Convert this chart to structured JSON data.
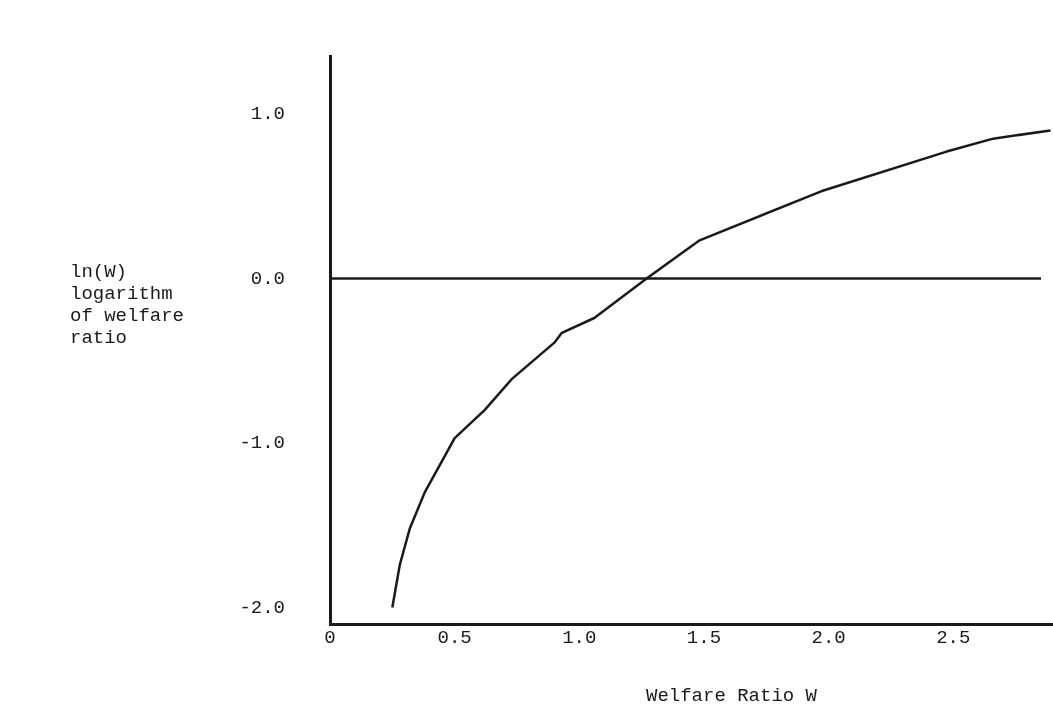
{
  "chart_data": {
    "type": "line",
    "xlabel": "Welfare Ratio W",
    "ylabel": "ln(W)\nlogarithm\nof welfare\nratio",
    "x": [
      0.25,
      0.28,
      0.32,
      0.38,
      0.5,
      0.62,
      0.73,
      0.9,
      0.93,
      1.06,
      1.27,
      1.48,
      1.97,
      2.47,
      2.66,
      2.89
    ],
    "series": [
      {
        "color": "#1a1a1a",
        "values": [
          -2.0,
          -1.74,
          -1.52,
          -1.3,
          -0.97,
          -0.8,
          -0.61,
          -0.39,
          -0.33,
          -0.24,
          0.0,
          0.23,
          0.53,
          0.77,
          0.85,
          0.9
        ]
      }
    ],
    "xlim": [
      0,
      2.9
    ],
    "xticks": [
      0,
      {
        "value": 0.5,
        "label": "0.5"
      },
      {
        "value": 1,
        "label": "1.0"
      },
      {
        "value": 1.5,
        "label": "1.5"
      },
      {
        "value": 2,
        "label": "2.0"
      },
      {
        "value": 2.5,
        "label": "2.5"
      }
    ],
    "ylim": [
      -2.1,
      1.35
    ],
    "yticks": [
      {
        "value": -2,
        "label": "-2.0"
      },
      {
        "value": -1,
        "label": "-1.0"
      },
      {
        "value": 0,
        "label": "0.0"
      },
      {
        "value": 1,
        "label": "1.0"
      }
    ],
    "ref_lines": [
      {
        "axis": "y",
        "value": 0,
        "color": "#1a1a1a"
      }
    ],
    "grid": false,
    "legend": false,
    "marker": "none",
    "line_style": "solid"
  }
}
